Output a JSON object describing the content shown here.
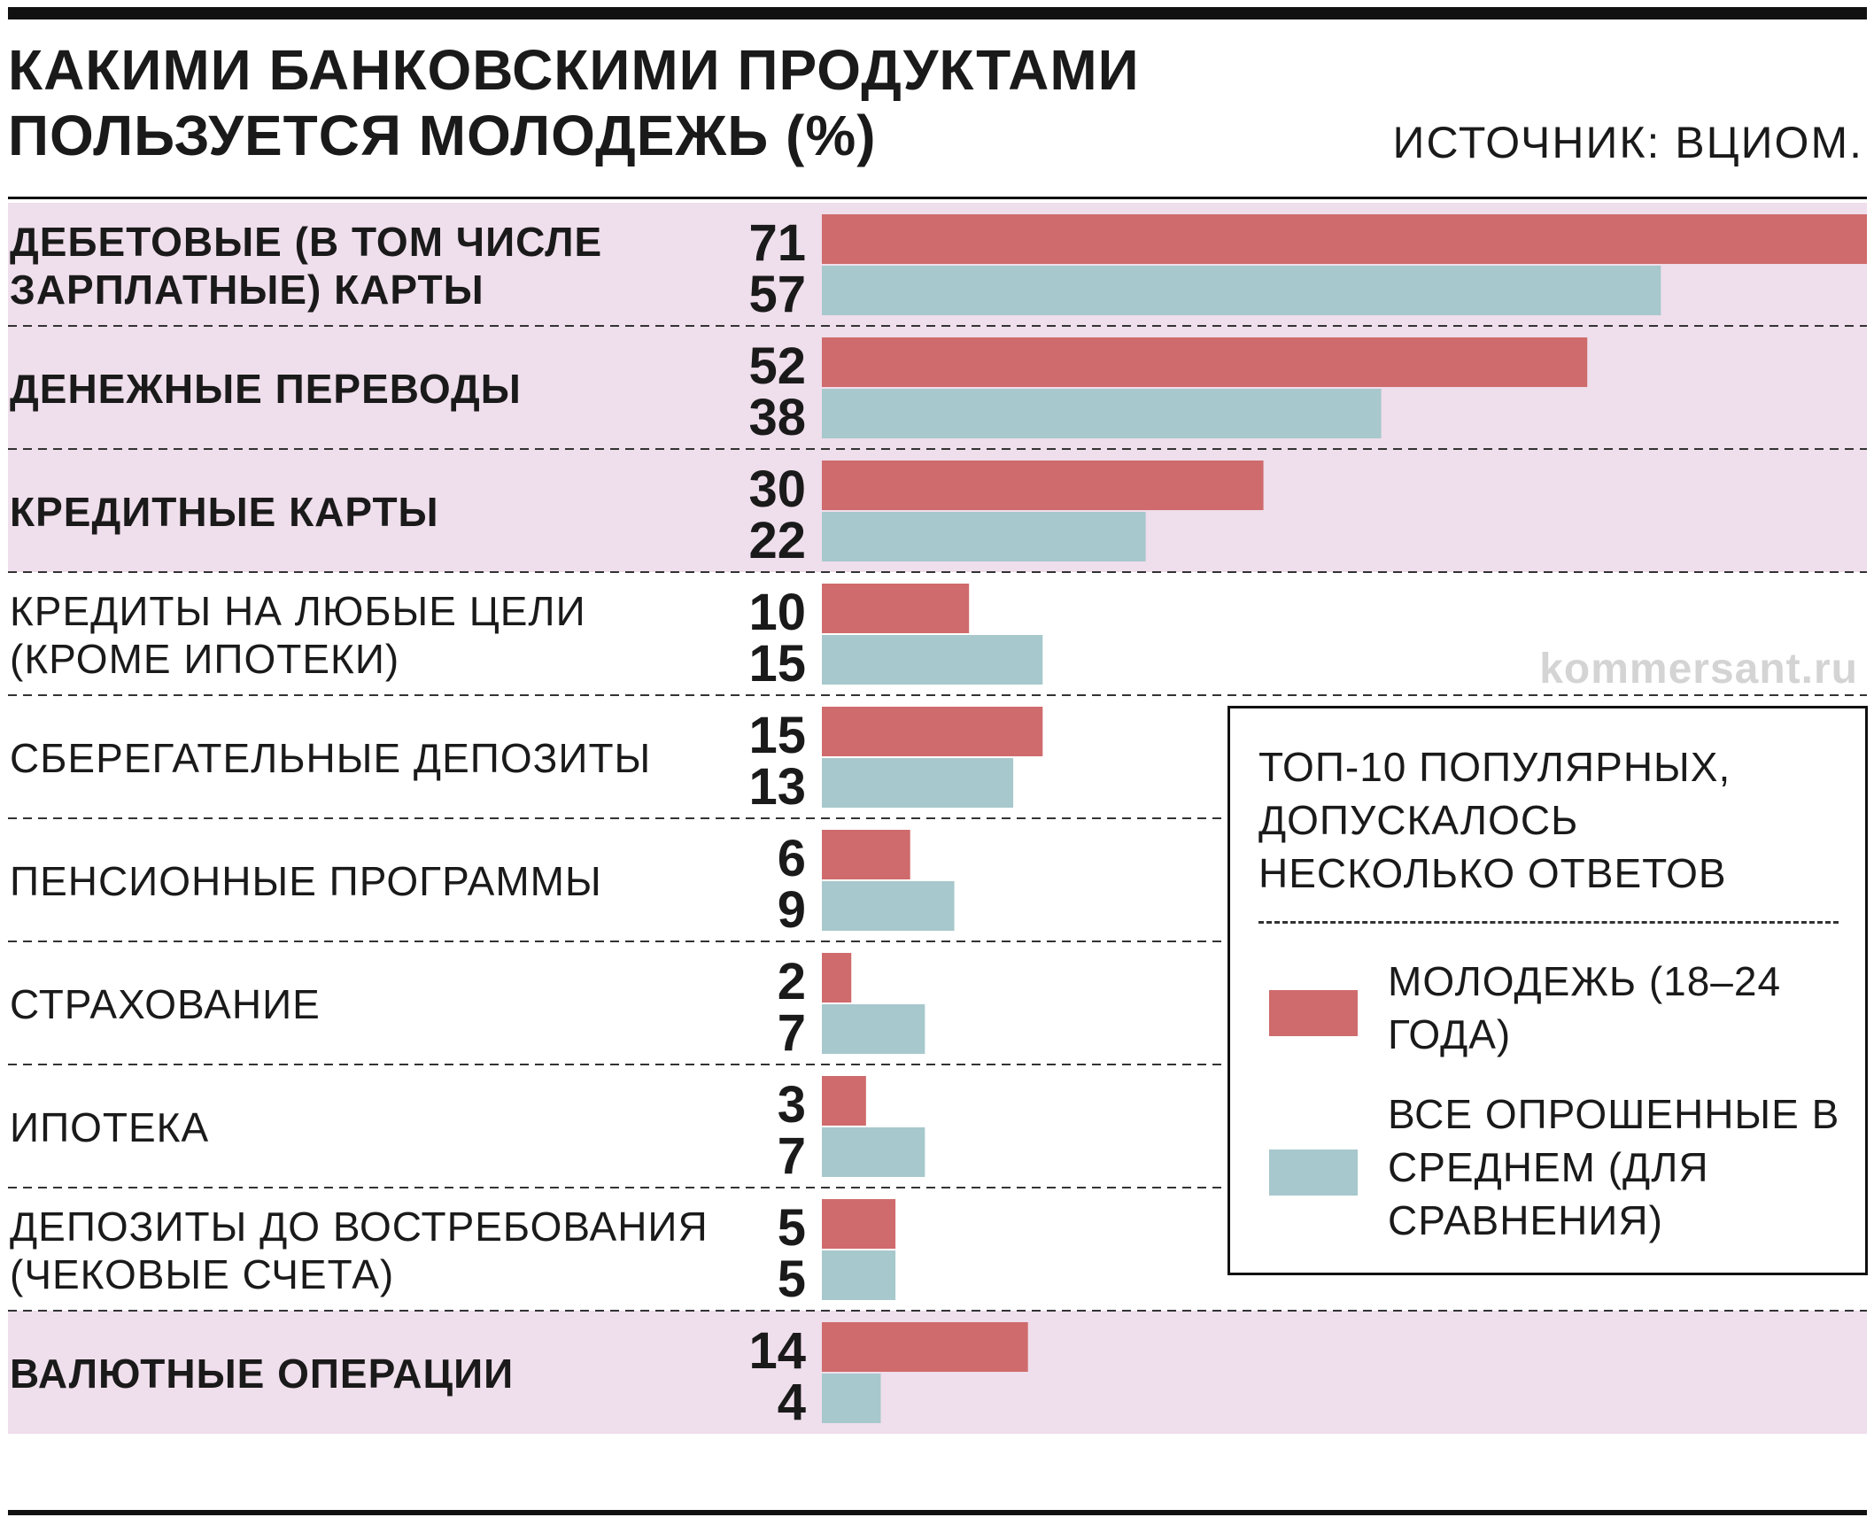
{
  "header": {
    "title": "КАКИМИ БАНКОВСКИМИ ПРОДУКТАМИ ПОЛЬЗУЕТСЯ МОЛОДЕЖЬ (%)",
    "source": "ИСТОЧНИК: ВЦИОМ."
  },
  "legend": {
    "note": "ТОП-10 ПОПУЛЯРНЫХ, ДОПУСКАЛОСЬ НЕСКОЛЬКО ОТВЕТОВ",
    "youth_label": "МОЛОДЕЖЬ (18–24 ГОДА)",
    "all_label": "ВСЕ ОПРОШЕННЫЕ В СРЕДНЕМ (ДЛЯ СРАВНЕНИЯ)"
  },
  "watermark": "kommersant.ru",
  "colors": {
    "youth": "#cf6b6c",
    "all": "#a7c8cc",
    "highlight_band": "#efdeeb",
    "separator": "#333333"
  },
  "chart_data": {
    "type": "bar",
    "orientation": "horizontal",
    "categories": [
      "ДЕБЕТОВЫЕ (В ТОМ ЧИСЛЕ ЗАРПЛАТНЫЕ) КАРТЫ",
      "ДЕНЕЖНЫЕ ПЕРЕВОДЫ",
      "КРЕДИТНЫЕ КАРТЫ",
      "КРЕДИТЫ НА ЛЮБЫЕ ЦЕЛИ (КРОМЕ ИПОТЕКИ)",
      "СБЕРЕГАТЕЛЬНЫЕ ДЕПОЗИТЫ",
      "ПЕНСИОННЫЕ ПРОГРАММЫ",
      "СТРАХОВАНИЕ",
      "ИПОТЕКА",
      "ДЕПОЗИТЫ ДО ВОСТРЕБОВАНИЯ (ЧЕКОВЫЕ СЧЕТА)",
      "ВАЛЮТНЫЕ ОПЕРАЦИИ"
    ],
    "highlighted": [
      true,
      true,
      true,
      false,
      false,
      false,
      false,
      false,
      false,
      true
    ],
    "series": [
      {
        "name": "МОЛОДЕЖЬ (18–24 ГОДА)",
        "values": [
          71,
          52,
          30,
          10,
          15,
          6,
          2,
          3,
          5,
          14
        ]
      },
      {
        "name": "ВСЕ ОПРОШЕННЫЕ В СРЕДНЕМ (ДЛЯ СРАВНЕНИЯ)",
        "values": [
          57,
          38,
          22,
          15,
          13,
          9,
          7,
          7,
          5,
          4
        ]
      }
    ],
    "xlim": [
      0,
      71
    ],
    "grid": false,
    "legend_position": "right"
  }
}
